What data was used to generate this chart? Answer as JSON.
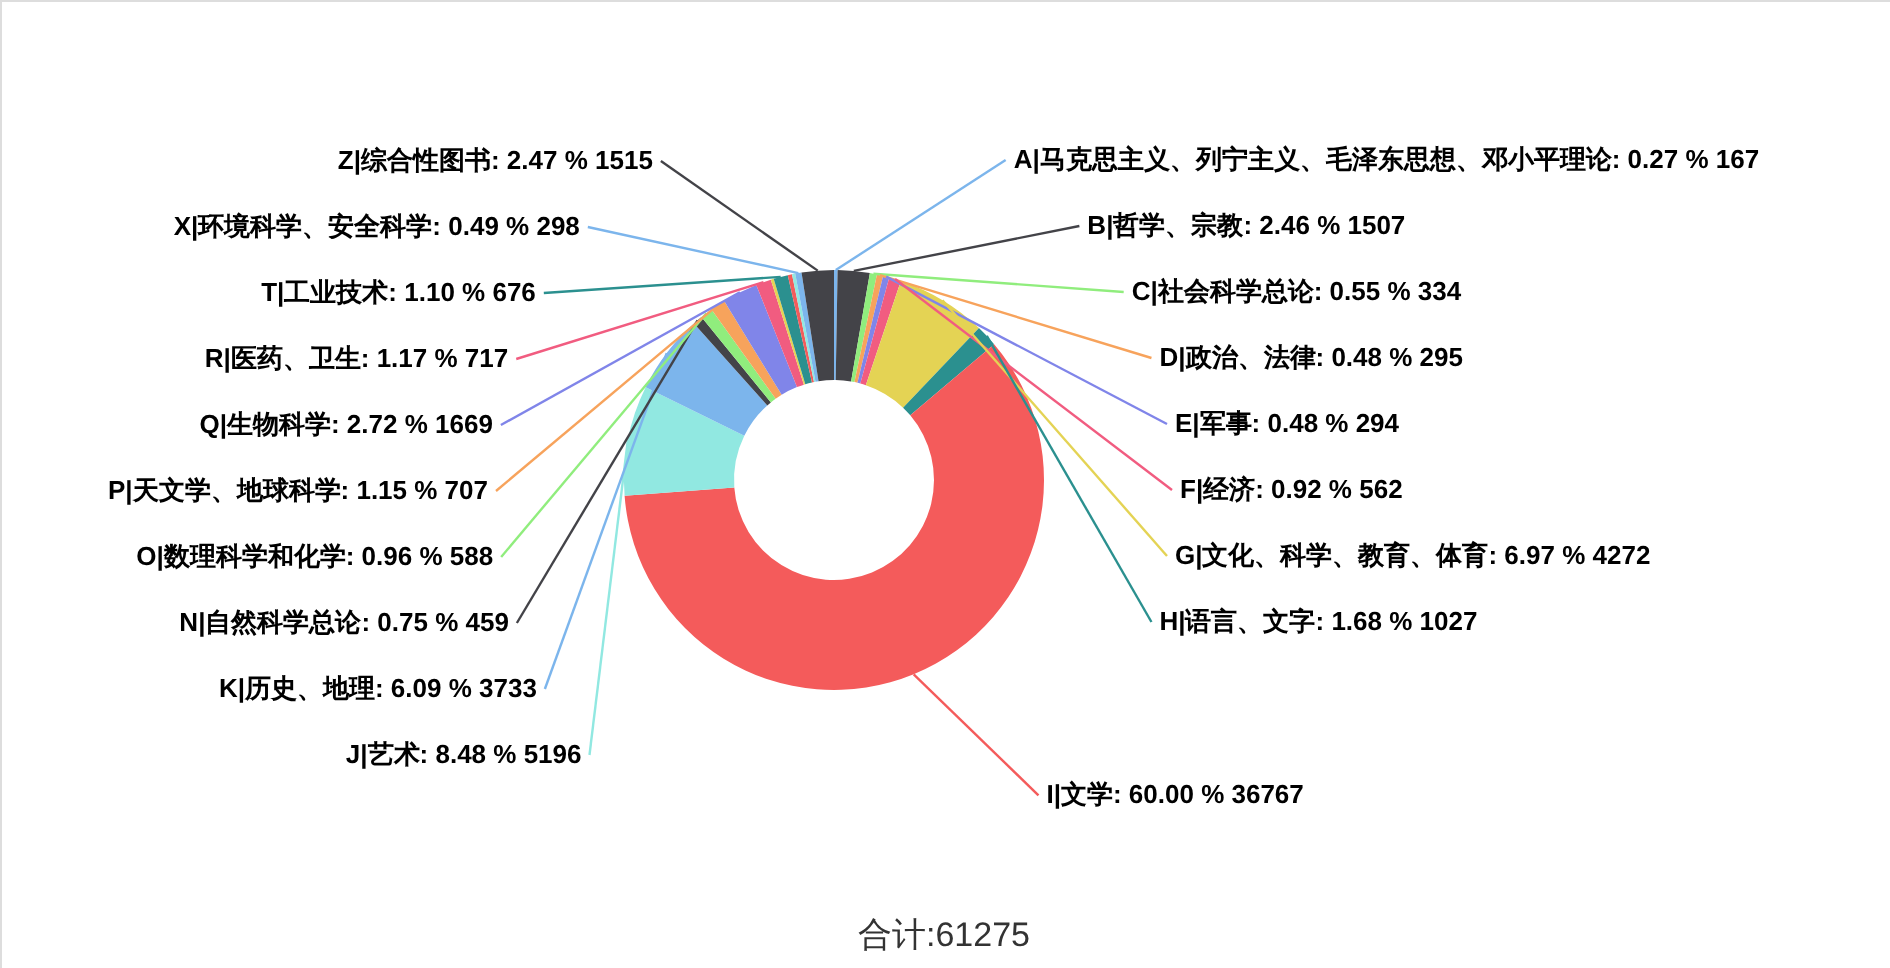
{
  "chart_data": {
    "type": "donut",
    "categories": [
      "A|马克思主义、列宁主义、毛泽东思想、邓小平理论",
      "B|哲学、宗教",
      "C|社会科学总论",
      "D|政治、法律",
      "E|军事",
      "F|经济",
      "G|文化、科学、教育、体育",
      "H|语言、文字",
      "I|文学",
      "J|艺术",
      "K|历史、地理",
      "N|自然科学总论",
      "O|数理科学和化学",
      "P|天文学、地球科学",
      "Q|生物科学",
      "R|医药、卫生",
      null,
      "T|工业技术",
      null,
      null,
      "X|环境科学、安全科学",
      "Z|综合性图书"
    ],
    "values": [
      167,
      1507,
      334,
      295,
      294,
      562,
      4272,
      1027,
      36767,
      5196,
      3733,
      459,
      588,
      707,
      1669,
      717,
      140,
      676,
      200,
      152,
      298,
      1515
    ],
    "value_labels": [
      "0.27 % 167",
      "2.46 % 1507",
      "0.55 % 334",
      "0.48 % 295",
      "0.48 % 294",
      "0.92 % 562",
      "6.97 % 4272",
      "1.68 % 1027",
      "60.00 % 36767",
      "8.48 % 5196",
      "6.09 % 3733",
      "0.75 % 459",
      "0.96 % 588",
      "1.15 % 707",
      "2.72 % 1669",
      "1.17 % 717",
      null,
      "1.10 % 676",
      null,
      null,
      "0.49 % 298",
      "2.47 % 1515"
    ],
    "colors": [
      "#7cb5ec",
      "#434348",
      "#90ed7d",
      "#f7a35c",
      "#8085e9",
      "#f15c80",
      "#e4d354",
      "#2b908f",
      "#f45b5b",
      "#91e8e1",
      "#7cb5ec",
      "#434348",
      "#90ed7d",
      "#f7a35c",
      "#8085e9",
      "#f15c80",
      "#e4d354",
      "#2b908f",
      "#f45b5b",
      "#91e8e1",
      "#7cb5ec",
      "#434348"
    ],
    "annotations": [
      "合计:61275"
    ]
  }
}
